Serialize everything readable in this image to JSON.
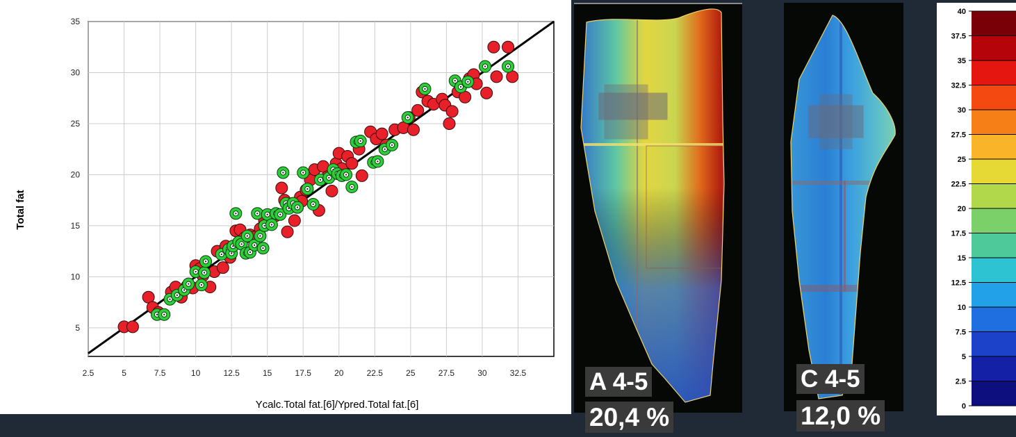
{
  "chart_data": {
    "type": "scatter",
    "xlabel": "Ycalc.Total fat.[6]/Ypred.Total fat.[6]",
    "ylabel": "Total fat",
    "xlim": [
      2.5,
      35
    ],
    "ylim": [
      2.2,
      35
    ],
    "xticks": [
      "2.5",
      "5",
      "7.5",
      "10",
      "12.5",
      "15",
      "17.5",
      "20",
      "22.5",
      "25",
      "27.5",
      "30",
      "32.5"
    ],
    "yticks": [
      "5",
      "10",
      "15",
      "20",
      "25",
      "30",
      "35"
    ],
    "grid": true,
    "fit_line": [
      [
        2.5,
        2.5
      ],
      [
        35,
        35
      ]
    ],
    "series": [
      {
        "color": "#e8202a",
        "marker": "filled-circle",
        "points": [
          [
            5,
            5.1
          ],
          [
            5.6,
            5.1
          ],
          [
            6.7,
            8
          ],
          [
            7,
            7
          ],
          [
            7.4,
            6.5
          ],
          [
            8.3,
            8.5
          ],
          [
            8.6,
            9
          ],
          [
            9,
            8
          ],
          [
            9.4,
            9.1
          ],
          [
            9.8,
            8.9
          ],
          [
            10,
            11.1
          ],
          [
            10.3,
            10.8
          ],
          [
            10.5,
            10.1
          ],
          [
            11,
            9
          ],
          [
            11.3,
            10.5
          ],
          [
            11.5,
            12.5
          ],
          [
            11.9,
            10.9
          ],
          [
            12.1,
            13
          ],
          [
            12.4,
            11.9
          ],
          [
            12.8,
            14.5
          ],
          [
            13.1,
            14.6
          ],
          [
            13.4,
            13.8
          ],
          [
            13.8,
            14.1
          ],
          [
            14.1,
            13.9
          ],
          [
            14.5,
            14.7
          ],
          [
            14.8,
            15.5
          ],
          [
            15.2,
            15.9
          ],
          [
            15.6,
            16
          ],
          [
            16,
            18.7
          ],
          [
            16.2,
            17.5
          ],
          [
            16.4,
            14.4
          ],
          [
            16.9,
            15.5
          ],
          [
            17.1,
            16.8
          ],
          [
            17.3,
            17.8
          ],
          [
            17.4,
            17.4
          ],
          [
            17.7,
            18.5
          ],
          [
            18,
            19.5
          ],
          [
            18.3,
            20.5
          ],
          [
            18.6,
            16.5
          ],
          [
            18.9,
            20.8
          ],
          [
            19.2,
            19.8
          ],
          [
            19.5,
            18.4
          ],
          [
            19.8,
            21.1
          ],
          [
            20,
            22.1
          ],
          [
            20.2,
            20.6
          ],
          [
            20.6,
            21.8
          ],
          [
            20.9,
            21.1
          ],
          [
            21.4,
            22.5
          ],
          [
            21.6,
            19.9
          ],
          [
            22.2,
            24.2
          ],
          [
            22.6,
            23.5
          ],
          [
            23,
            24
          ],
          [
            23.3,
            22.9
          ],
          [
            23.9,
            24.4
          ],
          [
            24.5,
            24.6
          ],
          [
            24.9,
            25.6
          ],
          [
            25.2,
            24.4
          ],
          [
            25.5,
            26.3
          ],
          [
            25.8,
            28.1
          ],
          [
            26.2,
            27.2
          ],
          [
            26.6,
            26.9
          ],
          [
            27.2,
            27.4
          ],
          [
            27.4,
            26.8
          ],
          [
            27.7,
            25
          ],
          [
            27.9,
            26.2
          ],
          [
            28.3,
            28.1
          ],
          [
            28.8,
            27.6
          ],
          [
            29.1,
            29.4
          ],
          [
            29.4,
            29.8
          ],
          [
            29.6,
            28.9
          ],
          [
            30.3,
            28
          ],
          [
            30.8,
            32.5
          ],
          [
            31,
            29.6
          ],
          [
            31.8,
            32.5
          ],
          [
            32.1,
            29.6
          ]
        ]
      },
      {
        "color": "#2ccf38",
        "marker": "ring",
        "points": [
          [
            7.3,
            6.3
          ],
          [
            7.8,
            6.3
          ],
          [
            8.2,
            7.8
          ],
          [
            8.7,
            8.2
          ],
          [
            9.2,
            8.7
          ],
          [
            9.5,
            9.3
          ],
          [
            10,
            10.5
          ],
          [
            10.4,
            9.2
          ],
          [
            10.6,
            10.4
          ],
          [
            10.7,
            11.5
          ],
          [
            11.8,
            12.2
          ],
          [
            12.3,
            12.7
          ],
          [
            12.5,
            12.3
          ],
          [
            12.6,
            13
          ],
          [
            12.8,
            16.2
          ],
          [
            13,
            13.4
          ],
          [
            13.2,
            13.2
          ],
          [
            13.5,
            12.3
          ],
          [
            13.6,
            14
          ],
          [
            13.8,
            12.4
          ],
          [
            14.1,
            13.1
          ],
          [
            14.3,
            16.2
          ],
          [
            14.5,
            14
          ],
          [
            14.7,
            12.8
          ],
          [
            14.8,
            15
          ],
          [
            15,
            16.1
          ],
          [
            15.3,
            15.1
          ],
          [
            15.6,
            16.2
          ],
          [
            15.9,
            16.1
          ],
          [
            16.1,
            20.2
          ],
          [
            16.3,
            17.2
          ],
          [
            16.5,
            16.7
          ],
          [
            16.8,
            17.2
          ],
          [
            17.1,
            16.8
          ],
          [
            17.5,
            20.2
          ],
          [
            17.8,
            18.6
          ],
          [
            18.2,
            17.1
          ],
          [
            18.7,
            19.5
          ],
          [
            19.3,
            19.7
          ],
          [
            19.6,
            20.5
          ],
          [
            19.9,
            20.1
          ],
          [
            20.2,
            19.9
          ],
          [
            20.5,
            20
          ],
          [
            20.9,
            18.8
          ],
          [
            21.2,
            23.2
          ],
          [
            21.5,
            23.3
          ],
          [
            22.4,
            21.2
          ],
          [
            22.7,
            21.3
          ],
          [
            23.2,
            22.5
          ],
          [
            23.7,
            22.9
          ],
          [
            24.8,
            25.6
          ],
          [
            26,
            28.4
          ],
          [
            28.1,
            29.2
          ],
          [
            28.5,
            28.6
          ],
          [
            29,
            29.1
          ],
          [
            30.2,
            30.6
          ],
          [
            31.8,
            30.6
          ]
        ]
      }
    ]
  },
  "scan_a": {
    "label": "A 4-5",
    "value": "20,4 %"
  },
  "scan_c": {
    "label": "C 4-5",
    "value": "12,0 %"
  },
  "colorbar": {
    "ticks": [
      "40",
      "37.5",
      "35",
      "32.5",
      "30",
      "27.5",
      "25",
      "22.5",
      "20",
      "17.5",
      "15",
      "12.5",
      "10",
      "7.5",
      "5",
      "2.5",
      "0"
    ],
    "colors": [
      "#7a0008",
      "#b5040a",
      "#e4160f",
      "#f44a12",
      "#f77f18",
      "#f9b42a",
      "#e6d835",
      "#b0d84a",
      "#7cd06a",
      "#4ec99a",
      "#2ec3d2",
      "#22a1e8",
      "#1f6fe0",
      "#1b42c8",
      "#1420a6",
      "#0d0f7e"
    ]
  }
}
